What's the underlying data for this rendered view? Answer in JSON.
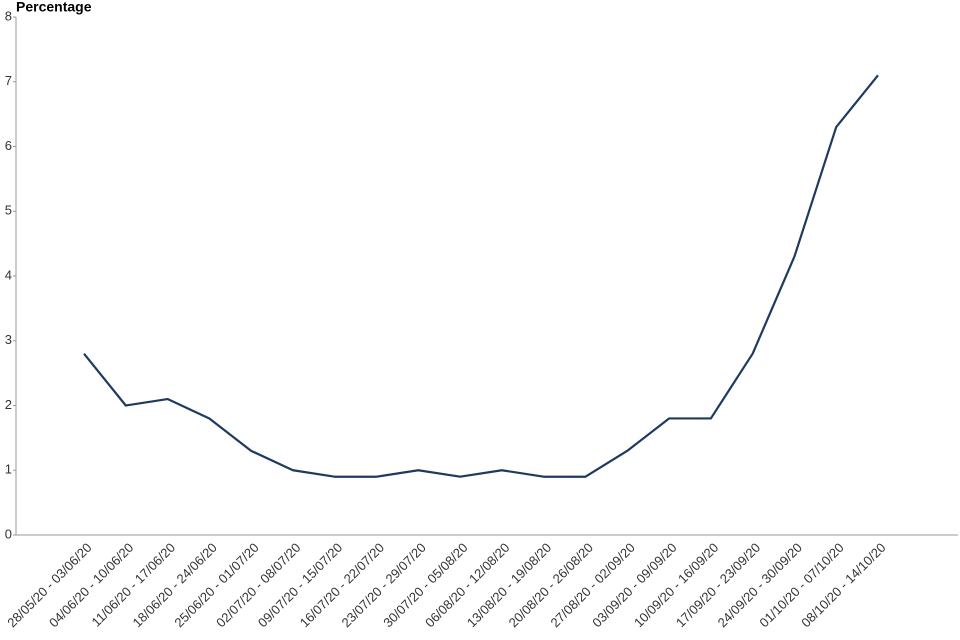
{
  "chart_data": {
    "type": "line",
    "y_label": "Percentage",
    "categories": [
      "28/05/20 - 03/06/20",
      "04/06/20 - 10/06/20",
      "11/06/20 - 17/06/20",
      "18/06/20 - 24/06/20",
      "25/06/20 - 01/07/20",
      "02/07/20 - 08/07/20",
      "09/07/20 - 15/07/20",
      "16/07/20 - 22/07/20",
      "23/07/20 - 29/07/20",
      "30/07/20 - 05/08/20",
      "06/08/20 - 12/08/20",
      "13/08/20 - 19/08/20",
      "20/08/20 - 26/08/20",
      "27/08/20 - 02/09/20",
      "03/09/20 - 09/09/20",
      "10/09/20 - 16/09/20",
      "17/09/20 - 23/09/20",
      "24/09/20 - 30/09/20",
      "01/10/20 - 07/10/20",
      "08/10/20 - 14/10/20"
    ],
    "values": [
      2.8,
      2.0,
      2.1,
      1.8,
      1.3,
      1.0,
      0.9,
      0.9,
      1.0,
      0.9,
      1.0,
      0.9,
      0.9,
      1.3,
      1.8,
      1.8,
      2.8,
      4.3,
      6.3,
      7.1
    ],
    "color": "#1f3a5f",
    "ylim": [
      0,
      8
    ],
    "yticks": [
      0,
      1,
      2,
      3,
      4,
      5,
      6,
      7,
      8
    ],
    "grid": false
  }
}
